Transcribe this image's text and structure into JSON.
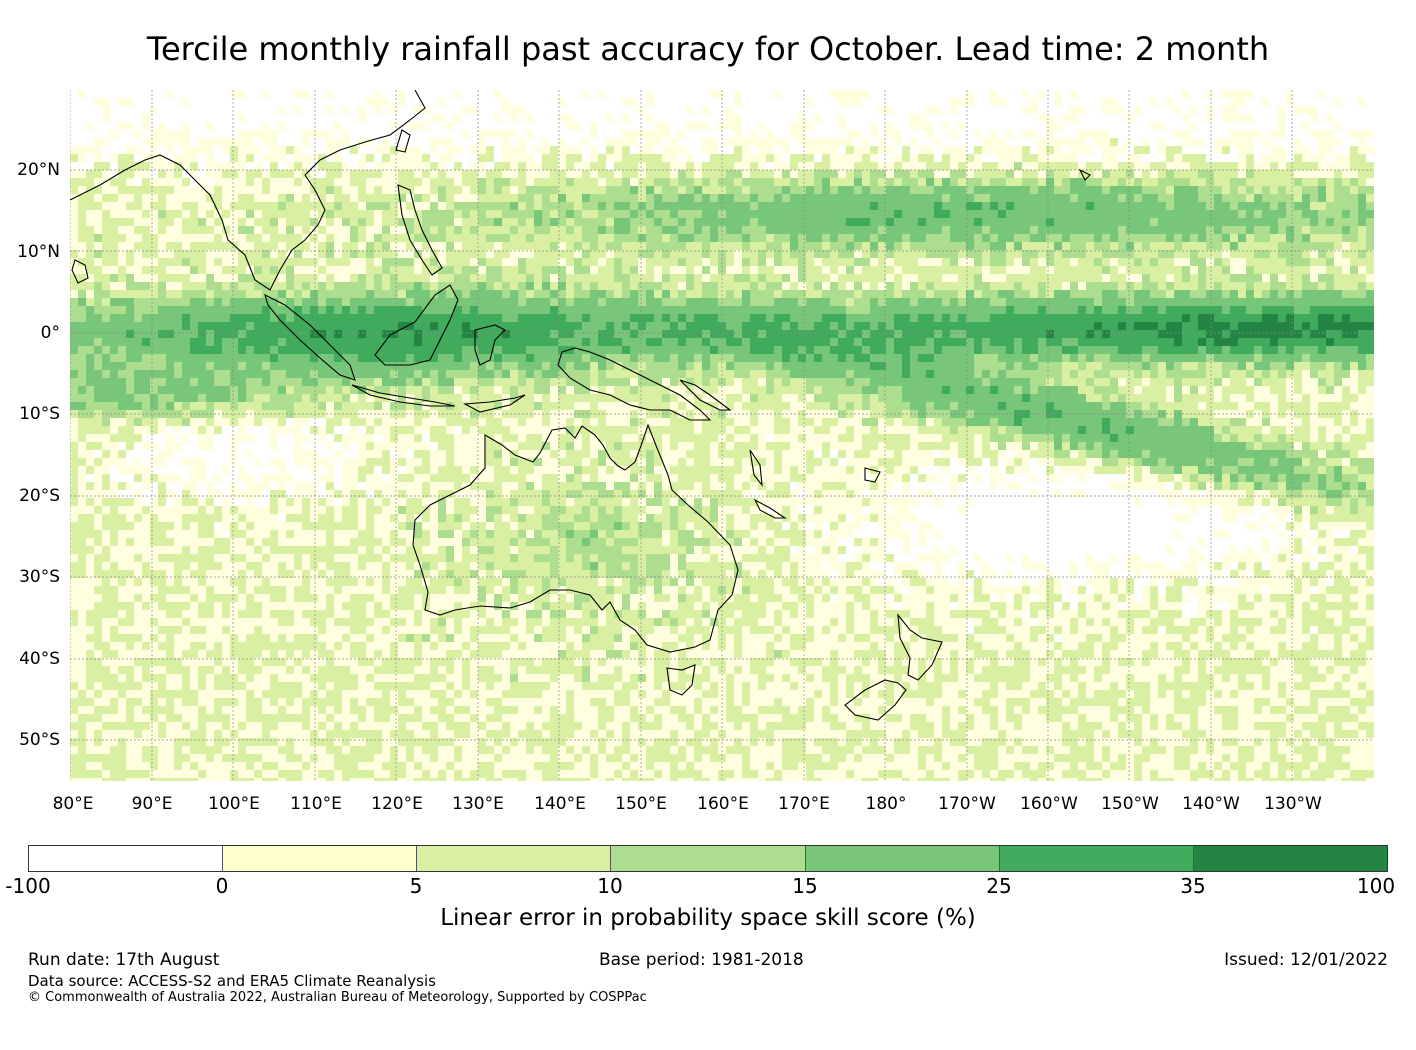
{
  "title": "Tercile monthly rainfall past accuracy for October. Lead time: 2 month",
  "lat_labels": [
    "20°N",
    "10°N",
    "0°",
    "10°S",
    "20°S",
    "30°S",
    "40°S",
    "50°S"
  ],
  "lon_labels": [
    "80°E",
    "90°E",
    "100°E",
    "110°E",
    "120°E",
    "130°E",
    "140°E",
    "150°E",
    "160°E",
    "170°E",
    "180°",
    "170°W",
    "160°W",
    "150°W",
    "140°W",
    "130°W"
  ],
  "colorbar": {
    "ticks": [
      "-100",
      "0",
      "5",
      "10",
      "15",
      "25",
      "35",
      "100"
    ],
    "colors": [
      "#ffffff",
      "#ffffcc",
      "#d9f0a3",
      "#addd8e",
      "#78c679",
      "#41ab5d",
      "#238443"
    ],
    "label": "Linear error in probability space skill score (%)"
  },
  "footer": {
    "run_date": "Run date: 17th August",
    "base_period": "Base period: 1981-2018",
    "issued": "Issued: 12/01/2022",
    "data_source": "Data source: ACCESS-S2 and ERA5 Climate Reanalysis",
    "copyright": "© Commonwealth of Australia 2022, Australian Bureau of Meteorology, Supported by COSPPac"
  }
}
